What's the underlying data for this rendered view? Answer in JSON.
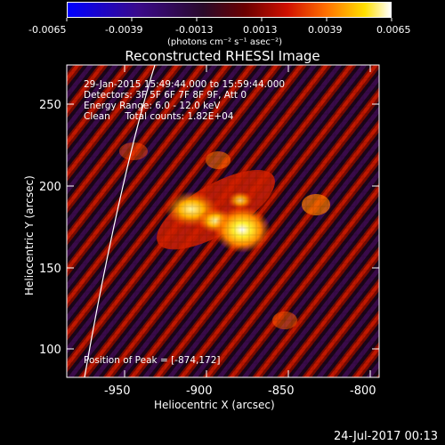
{
  "colorbar": {
    "tick_labels": [
      "-0.0065",
      "-0.0039",
      "-0.0013",
      "0.0013",
      "0.0039",
      "0.0065"
    ],
    "unit_label": "(photons cm⁻² s⁻¹ asec⁻²)"
  },
  "image": {
    "title": "Reconstructed RHESSI Image",
    "annotations": {
      "time_range": "29-Jan-2015 15:49:44.000 to 15:59:44.000",
      "detectors": "Detectors: 3F 5F 6F 7F 8F 9F, Att 0",
      "energy_range": "Energy Range: 6.0 - 12.0 keV",
      "clean_total": "Clean     Total counts: 1.82E+04",
      "peak_position": "Position of Peak = [-874,172]"
    },
    "x_axis": {
      "label": "Heliocentric X (arcsec)",
      "ticks": [
        "-950",
        "-900",
        "-850",
        "-800"
      ],
      "range": [
        -980,
        -790
      ]
    },
    "y_axis": {
      "label": "Heliocentric Y (arcsec)",
      "ticks": [
        "100",
        "150",
        "200",
        "250"
      ],
      "range": [
        80,
        278
      ]
    },
    "peak": {
      "x": -874,
      "y": 172
    },
    "colors": {
      "background": "#000000",
      "foreground": "#ffffff",
      "colorbar_stops": [
        "#0000ff",
        "#3a0a8a",
        "#2a0a2a",
        "#6b0000",
        "#d01000",
        "#ff7000",
        "#ffe000",
        "#ffffff"
      ]
    }
  },
  "footer": {
    "timestamp": "24-Jul-2017 00:13"
  }
}
